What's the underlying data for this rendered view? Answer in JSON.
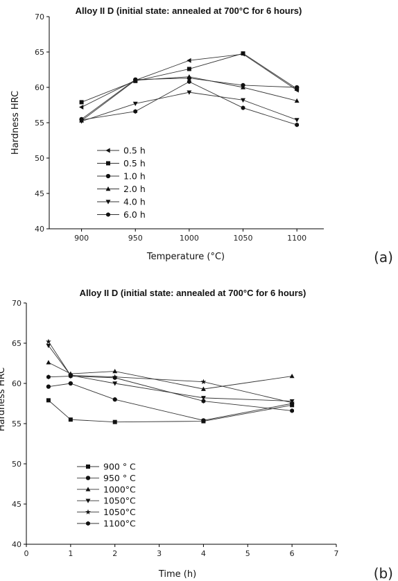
{
  "chart_data": [
    {
      "type": "line",
      "title": "Alloy II D  (initial state: annealed at 700°C for 6 hours)",
      "xlabel": "Temperature (°C)",
      "ylabel": "Hardness HRC",
      "xlim": [
        870,
        1125
      ],
      "ylim": [
        40,
        70
      ],
      "xticks": [
        900,
        950,
        1000,
        1050,
        1100
      ],
      "yticks": [
        40,
        45,
        50,
        55,
        60,
        65,
        70
      ],
      "x": [
        900,
        950,
        1000,
        1050,
        1100
      ],
      "legend_position": "lower-left",
      "panel_label": "(a)",
      "series": [
        {
          "name": "0.5 h",
          "marker": "triangle-left",
          "values": [
            57.2,
            61.0,
            63.8,
            64.7,
            59.6
          ]
        },
        {
          "name": "0.5 h",
          "marker": "square",
          "values": [
            57.9,
            60.9,
            62.6,
            64.8,
            59.8
          ]
        },
        {
          "name": "1.0 h",
          "marker": "circle",
          "values": [
            55.5,
            61.1,
            61.3,
            60.3,
            60.0
          ]
        },
        {
          "name": "2.0 h",
          "marker": "triangle-up",
          "values": [
            55.3,
            61.0,
            61.5,
            60.0,
            58.1
          ]
        },
        {
          "name": "4.0 h",
          "marker": "triangle-down",
          "values": [
            55.2,
            57.7,
            59.3,
            58.2,
            55.4
          ]
        },
        {
          "name": "6.0 h",
          "marker": "hexagon",
          "values": [
            55.4,
            56.6,
            60.8,
            57.1,
            54.7
          ]
        }
      ]
    },
    {
      "type": "line",
      "title": "Alloy II D  (initial state: annealed at 700°C for 6 hours)",
      "xlabel": "Time (h)",
      "ylabel": "Hardness HRC",
      "xlim": [
        0,
        7
      ],
      "ylim": [
        40,
        70
      ],
      "xticks": [
        0,
        1,
        2,
        3,
        4,
        5,
        6,
        7
      ],
      "yticks": [
        40,
        45,
        50,
        55,
        60,
        65,
        70
      ],
      "x": [
        0.5,
        1,
        2,
        4,
        6
      ],
      "legend_position": "lower-left",
      "panel_label": "(b)",
      "series": [
        {
          "name": "900 ° C",
          "marker": "square",
          "values": [
            57.9,
            55.5,
            55.2,
            55.3,
            57.3
          ]
        },
        {
          "name": "950 ° C",
          "marker": "circle",
          "values": [
            59.6,
            60.0,
            58.0,
            55.4,
            57.5
          ]
        },
        {
          "name": "1000°C",
          "marker": "triangle-up",
          "values": [
            62.6,
            61.2,
            61.5,
            59.3,
            60.9
          ]
        },
        {
          "name": "1050°C",
          "marker": "triangle-down",
          "values": [
            64.7,
            61.0,
            60.0,
            58.2,
            57.8
          ]
        },
        {
          "name": "1050°C",
          "marker": "star",
          "values": [
            65.2,
            61.0,
            60.8,
            60.2,
            57.6
          ]
        },
        {
          "name": "1100°C",
          "marker": "hexagon",
          "values": [
            60.8,
            60.9,
            60.7,
            57.8,
            56.6
          ]
        }
      ]
    }
  ]
}
